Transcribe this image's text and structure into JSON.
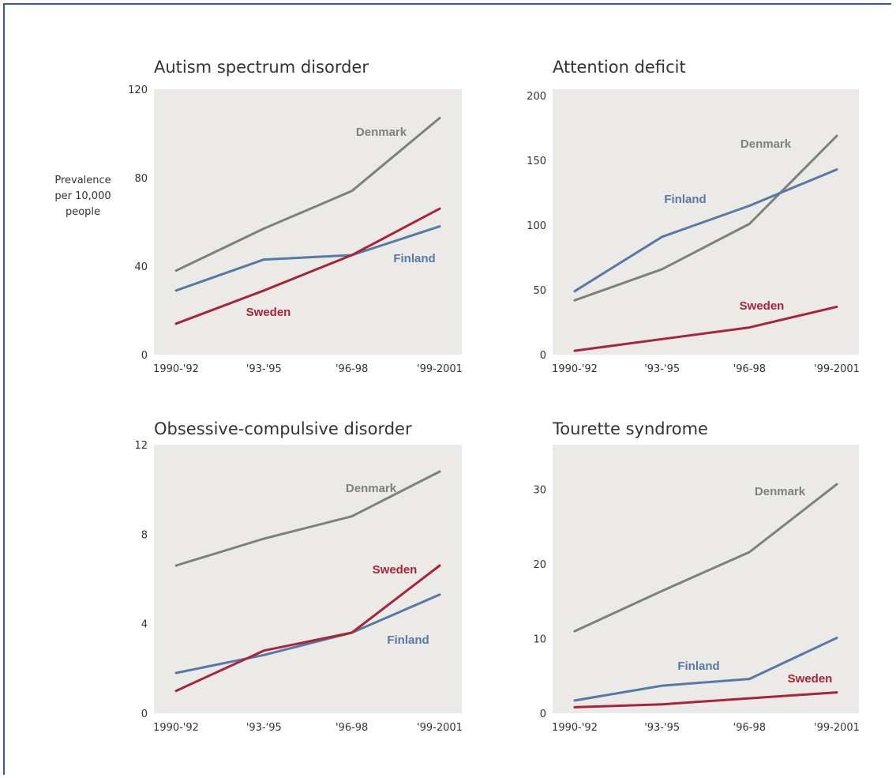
{
  "ylabel": [
    "Prevalence",
    "per 10,000",
    "people"
  ],
  "colors": {
    "Denmark": "#7f7f7f",
    "Finland": "#5878a8",
    "Sweden": "#a8243a",
    "plot_bg": "#ebeae7"
  },
  "chart_data": [
    {
      "type": "line",
      "title": "Autism spectrum disorder",
      "categories": [
        "1990-'92",
        "'93-'95",
        "'96-98",
        "'99-2001"
      ],
      "ylim": [
        0,
        120
      ],
      "yticks": [
        0,
        40,
        80,
        120
      ],
      "series": [
        {
          "name": "Denmark",
          "values": [
            38,
            57,
            74,
            107
          ]
        },
        {
          "name": "Finland",
          "values": [
            29,
            43,
            45,
            58
          ]
        },
        {
          "name": "Sweden",
          "values": [
            14,
            29,
            45,
            66
          ]
        }
      ]
    },
    {
      "type": "line",
      "title": "Attention deficit",
      "categories": [
        "1990-'92",
        "'93-'95",
        "'96-98",
        "'99-2001"
      ],
      "ylim": [
        0,
        205
      ],
      "yticks": [
        0,
        50,
        100,
        150,
        200
      ],
      "series": [
        {
          "name": "Denmark",
          "values": [
            42,
            66,
            101,
            169
          ]
        },
        {
          "name": "Finland",
          "values": [
            49,
            91,
            115,
            143
          ]
        },
        {
          "name": "Sweden",
          "values": [
            3,
            12,
            21,
            37
          ]
        }
      ]
    },
    {
      "type": "line",
      "title": "Obsessive-compulsive disorder",
      "categories": [
        "1990-'92",
        "'93-'95",
        "'96-98",
        "'99-2001"
      ],
      "ylim": [
        0,
        12
      ],
      "yticks": [
        0,
        4,
        8,
        12
      ],
      "series": [
        {
          "name": "Denmark",
          "values": [
            6.6,
            7.8,
            8.8,
            10.8
          ]
        },
        {
          "name": "Finland",
          "values": [
            1.8,
            2.6,
            3.6,
            5.3
          ]
        },
        {
          "name": "Sweden",
          "values": [
            1.0,
            2.8,
            3.6,
            6.6
          ]
        }
      ]
    },
    {
      "type": "line",
      "title": "Tourette syndrome",
      "categories": [
        "1990-'92",
        "'93-'95",
        "'96-98",
        "'99-2001"
      ],
      "ylim": [
        0,
        36
      ],
      "yticks": [
        0,
        10,
        20,
        30
      ],
      "series": [
        {
          "name": "Denmark",
          "values": [
            11,
            16.4,
            21.6,
            30.7
          ]
        },
        {
          "name": "Finland",
          "values": [
            1.7,
            3.7,
            4.6,
            10.1
          ]
        },
        {
          "name": "Sweden",
          "values": [
            0.8,
            1.2,
            2.0,
            2.8
          ]
        }
      ]
    }
  ]
}
